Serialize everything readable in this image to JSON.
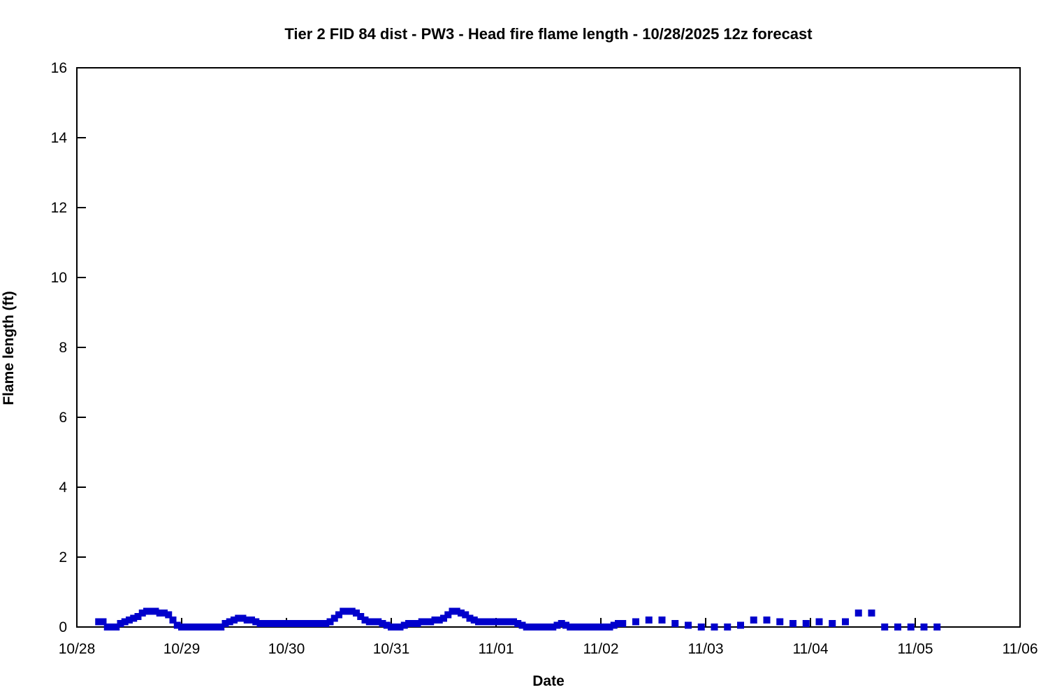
{
  "chart_data": {
    "type": "scatter",
    "title": "Tier 2 FID 84 dist - PW3 - Head fire flame length - 10/28/2025 12z forecast",
    "xlabel": "Date",
    "ylabel": "Flame length (ft)",
    "marker": "square",
    "marker_color": "#0000CC",
    "axis_color": "#000000",
    "background_color": "#FFFFFF",
    "grid": false,
    "legend": "none",
    "ylim": [
      0,
      16
    ],
    "yticks": [
      0,
      2,
      4,
      6,
      8,
      10,
      12,
      14,
      16
    ],
    "x_axis": {
      "unit": "hours since 10/28 00:00",
      "lim_hours": [
        0,
        216
      ],
      "tick_hours": [
        0,
        24,
        48,
        72,
        96,
        120,
        144,
        168,
        192,
        216
      ],
      "tick_labels": [
        "10/28",
        "10/29",
        "10/30",
        "10/31",
        "11/01",
        "11/02",
        "11/03",
        "11/04",
        "11/05",
        "11/06"
      ]
    },
    "series": [
      {
        "name": "Head fire flame length (ft)",
        "cadence": "hourly from 10/28 05:00 to 11/02 05:00, then 3-hourly to 11/05 05:00",
        "points": [
          [
            5,
            0.15
          ],
          [
            6,
            0.15
          ],
          [
            7,
            0
          ],
          [
            8,
            0
          ],
          [
            9,
            0
          ],
          [
            10,
            0.1
          ],
          [
            11,
            0.15
          ],
          [
            12,
            0.2
          ],
          [
            13,
            0.25
          ],
          [
            14,
            0.3
          ],
          [
            15,
            0.4
          ],
          [
            16,
            0.45
          ],
          [
            17,
            0.45
          ],
          [
            18,
            0.45
          ],
          [
            19,
            0.4
          ],
          [
            20,
            0.4
          ],
          [
            21,
            0.35
          ],
          [
            22,
            0.2
          ],
          [
            23,
            0.05
          ],
          [
            24,
            0
          ],
          [
            25,
            0
          ],
          [
            26,
            0
          ],
          [
            27,
            0
          ],
          [
            28,
            0
          ],
          [
            29,
            0
          ],
          [
            30,
            0
          ],
          [
            31,
            0
          ],
          [
            32,
            0
          ],
          [
            33,
            0
          ],
          [
            34,
            0.1
          ],
          [
            35,
            0.15
          ],
          [
            36,
            0.2
          ],
          [
            37,
            0.25
          ],
          [
            38,
            0.25
          ],
          [
            39,
            0.2
          ],
          [
            40,
            0.2
          ],
          [
            41,
            0.15
          ],
          [
            42,
            0.1
          ],
          [
            43,
            0.1
          ],
          [
            44,
            0.1
          ],
          [
            45,
            0.1
          ],
          [
            46,
            0.1
          ],
          [
            47,
            0.1
          ],
          [
            48,
            0.1
          ],
          [
            49,
            0.1
          ],
          [
            50,
            0.1
          ],
          [
            51,
            0.1
          ],
          [
            52,
            0.1
          ],
          [
            53,
            0.1
          ],
          [
            54,
            0.1
          ],
          [
            55,
            0.1
          ],
          [
            56,
            0.1
          ],
          [
            57,
            0.1
          ],
          [
            58,
            0.15
          ],
          [
            59,
            0.25
          ],
          [
            60,
            0.35
          ],
          [
            61,
            0.45
          ],
          [
            62,
            0.45
          ],
          [
            63,
            0.45
          ],
          [
            64,
            0.4
          ],
          [
            65,
            0.3
          ],
          [
            66,
            0.2
          ],
          [
            67,
            0.15
          ],
          [
            68,
            0.15
          ],
          [
            69,
            0.15
          ],
          [
            70,
            0.1
          ],
          [
            71,
            0.05
          ],
          [
            72,
            0
          ],
          [
            73,
            0
          ],
          [
            74,
            0
          ],
          [
            75,
            0.05
          ],
          [
            76,
            0.1
          ],
          [
            77,
            0.1
          ],
          [
            78,
            0.1
          ],
          [
            79,
            0.15
          ],
          [
            80,
            0.15
          ],
          [
            81,
            0.15
          ],
          [
            82,
            0.2
          ],
          [
            83,
            0.2
          ],
          [
            84,
            0.25
          ],
          [
            85,
            0.35
          ],
          [
            86,
            0.45
          ],
          [
            87,
            0.45
          ],
          [
            88,
            0.4
          ],
          [
            89,
            0.35
          ],
          [
            90,
            0.25
          ],
          [
            91,
            0.2
          ],
          [
            92,
            0.15
          ],
          [
            93,
            0.15
          ],
          [
            94,
            0.15
          ],
          [
            95,
            0.15
          ],
          [
            96,
            0.15
          ],
          [
            97,
            0.15
          ],
          [
            98,
            0.15
          ],
          [
            99,
            0.15
          ],
          [
            100,
            0.15
          ],
          [
            101,
            0.1
          ],
          [
            102,
            0.05
          ],
          [
            103,
            0
          ],
          [
            104,
            0
          ],
          [
            105,
            0
          ],
          [
            106,
            0
          ],
          [
            107,
            0
          ],
          [
            108,
            0
          ],
          [
            109,
            0
          ],
          [
            110,
            0.05
          ],
          [
            111,
            0.1
          ],
          [
            112,
            0.05
          ],
          [
            113,
            0
          ],
          [
            114,
            0
          ],
          [
            115,
            0
          ],
          [
            116,
            0
          ],
          [
            117,
            0
          ],
          [
            118,
            0
          ],
          [
            119,
            0
          ],
          [
            120,
            0
          ],
          [
            121,
            0
          ],
          [
            122,
            0
          ],
          [
            123,
            0.05
          ],
          [
            124,
            0.1
          ],
          [
            125,
            0.1
          ],
          [
            128,
            0.15
          ],
          [
            131,
            0.2
          ],
          [
            134,
            0.2
          ],
          [
            137,
            0.1
          ],
          [
            140,
            0.05
          ],
          [
            143,
            0
          ],
          [
            146,
            0
          ],
          [
            149,
            0
          ],
          [
            152,
            0.05
          ],
          [
            155,
            0.2
          ],
          [
            158,
            0.2
          ],
          [
            161,
            0.15
          ],
          [
            164,
            0.1
          ],
          [
            167,
            0.1
          ],
          [
            170,
            0.15
          ],
          [
            173,
            0.1
          ],
          [
            176,
            0.15
          ],
          [
            179,
            0.4
          ],
          [
            182,
            0.4
          ],
          [
            185,
            0
          ],
          [
            188,
            0
          ],
          [
            191,
            0
          ],
          [
            194,
            0
          ],
          [
            197,
            0
          ]
        ]
      }
    ]
  }
}
